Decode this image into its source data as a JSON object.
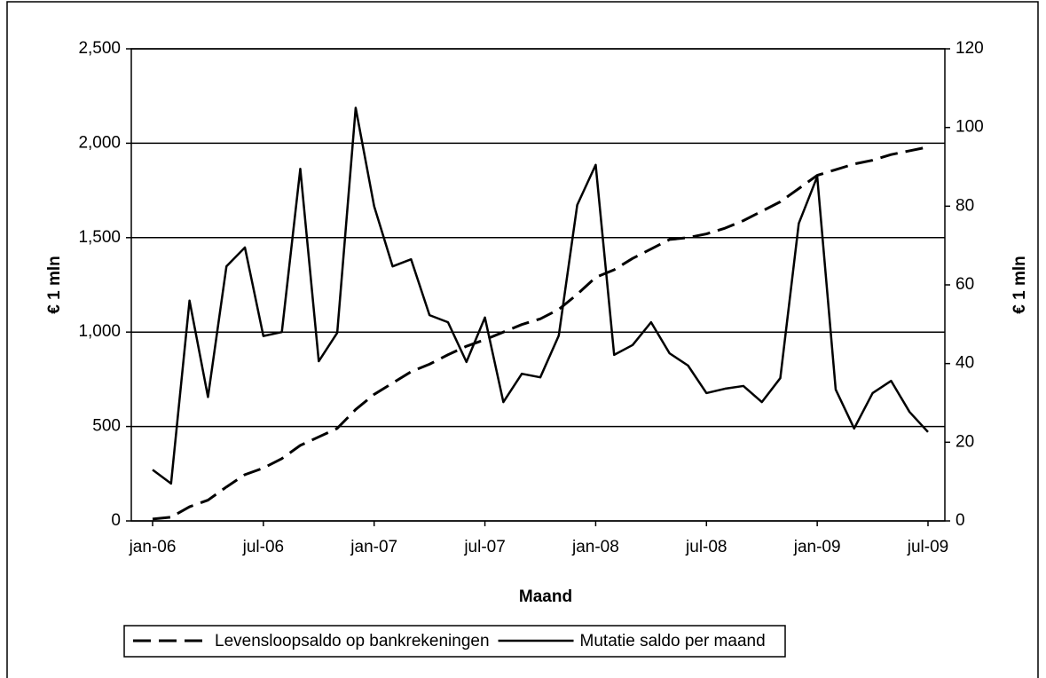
{
  "chart_data": {
    "type": "line",
    "x_label": "Maand",
    "y_label": "€ 1 mln",
    "y2_label": "€ 1 mln",
    "categories": [
      "jan-06",
      null,
      null,
      null,
      null,
      null,
      "jul-06",
      null,
      null,
      null,
      null,
      null,
      "jan-07",
      null,
      null,
      null,
      null,
      null,
      "jul-07",
      null,
      null,
      null,
      null,
      null,
      "jan-08",
      null,
      null,
      null,
      null,
      null,
      "jul-08",
      null,
      null,
      null,
      null,
      null,
      "jan-09",
      null,
      null,
      null,
      null,
      null,
      "jul-09"
    ],
    "ylim": [
      0,
      2500
    ],
    "yticks": [
      0,
      {
        "value": 500,
        "label": "500"
      },
      {
        "value": 1000,
        "label": "1,000"
      },
      {
        "value": 1500,
        "label": "1,500"
      },
      {
        "value": 2000,
        "label": "2,000"
      },
      {
        "value": 2500,
        "label": "2,500"
      }
    ],
    "y2lim": [
      0,
      120
    ],
    "y2ticks": [
      0,
      20,
      40,
      60,
      80,
      100,
      120
    ],
    "grid": true,
    "legend": "bottom",
    "series": [
      {
        "name": "Levensloopsaldo op bankrekeningen",
        "color": "#000000",
        "dash": true,
        "values": [
          10,
          20,
          75,
          110,
          180,
          245,
          280,
          330,
          400,
          445,
          490,
          590,
          670,
          730,
          790,
          830,
          880,
          925,
          960,
          1000,
          1040,
          1070,
          1120,
          1200,
          1290,
          1330,
          1390,
          1440,
          1490,
          1500,
          1520,
          1550,
          1590,
          1640,
          1690,
          1760,
          1830,
          1860,
          1890,
          1910,
          1940,
          1960,
          1980
        ]
      },
      {
        "name": "Mutatie saldo per maand",
        "color": "#000000",
        "dash": false,
        "axis": "y2",
        "values": [
          13,
          9.5,
          56,
          31.5,
          64.7,
          69.5,
          47,
          48,
          89.5,
          40.6,
          47.8,
          105,
          80,
          64.7,
          66.5,
          52.3,
          50.5,
          40.4,
          51.7,
          30.2,
          37.4,
          36.5,
          47.1,
          80.3,
          90.5,
          42.2,
          44.7,
          50.5,
          42.6,
          39.5,
          32.5,
          33.6,
          34.3,
          30.2,
          36.3,
          75.6,
          87.5,
          33.4,
          23.5,
          32.5,
          35.6,
          27.7,
          22.6
        ]
      }
    ]
  }
}
